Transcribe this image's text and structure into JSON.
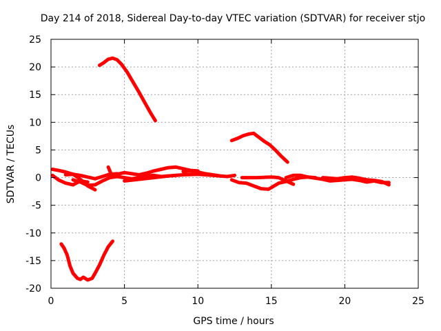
{
  "chart_data": {
    "type": "line",
    "title": "Day 214 of 2018, Sidereal Day-to-day VTEC variation (SDTVAR) for receiver stjo",
    "xlabel": "GPS time / hours",
    "ylabel": "SDTVAR / TECUs",
    "xlim": [
      0,
      25
    ],
    "ylim": [
      -20,
      25
    ],
    "xticks": [
      0,
      5,
      10,
      15,
      20,
      25
    ],
    "yticks": [
      -20,
      -15,
      -10,
      -5,
      0,
      5,
      10,
      15,
      20,
      25
    ],
    "xtick_labels": [
      "0",
      "5",
      "10",
      "15",
      "20",
      "25"
    ],
    "ytick_labels": [
      "-20",
      "-15",
      "-10",
      "-5",
      "0",
      "5",
      "10",
      "15",
      "20",
      "25"
    ],
    "grid": true,
    "legend": "none",
    "color": "#ff0000",
    "series": [
      {
        "name": "arc-positive-large",
        "x": [
          3.3,
          3.6,
          3.9,
          4.2,
          4.5,
          4.8,
          5.2,
          5.6,
          6.0,
          6.4,
          6.8,
          7.1
        ],
        "y": [
          20.3,
          20.8,
          21.4,
          21.6,
          21.3,
          20.5,
          19.0,
          17.2,
          15.4,
          13.5,
          11.6,
          10.3
        ]
      },
      {
        "name": "arc-negative-large",
        "x": [
          0.7,
          0.9,
          1.1,
          1.3,
          1.5,
          1.8,
          2.0,
          2.2,
          2.5,
          2.8,
          3.0,
          3.3,
          3.6,
          3.9,
          4.2
        ],
        "y": [
          -12.0,
          -12.8,
          -14.0,
          -16.0,
          -17.3,
          -18.2,
          -18.4,
          -18.0,
          -18.5,
          -18.2,
          -17.3,
          -15.8,
          -14.0,
          -12.5,
          -11.5
        ]
      },
      {
        "name": "arc-positive-evening",
        "x": [
          12.3,
          12.7,
          13.1,
          13.5,
          13.8,
          14.1,
          14.5,
          14.9,
          15.3,
          15.7,
          16.1
        ],
        "y": [
          6.7,
          7.1,
          7.6,
          7.9,
          8.0,
          7.4,
          6.6,
          5.9,
          4.9,
          3.8,
          2.8
        ]
      },
      {
        "name": "near-zero-a",
        "x": [
          0.1,
          0.5,
          1.0,
          1.5,
          2.0,
          2.5,
          3.0,
          3.5,
          4.0,
          4.5
        ],
        "y": [
          1.5,
          1.3,
          1.0,
          0.6,
          0.4,
          0.1,
          -0.2,
          0.2,
          0.6,
          0.7
        ]
      },
      {
        "name": "near-zero-b",
        "x": [
          0.1,
          0.5,
          1.0,
          1.5,
          2.0,
          2.5
        ],
        "y": [
          0.4,
          -0.4,
          -1.0,
          -1.3,
          -0.6,
          -0.8
        ]
      },
      {
        "name": "near-zero-c",
        "x": [
          1.5,
          2.0,
          2.5,
          3.0,
          3.5,
          4.0,
          4.5,
          5.0,
          5.5,
          6.0,
          6.5,
          7.0,
          7.5,
          8.0
        ],
        "y": [
          -0.4,
          -0.8,
          -1.4,
          -1.3,
          -0.6,
          0.0,
          0.2,
          0.0,
          -0.2,
          0.0,
          0.3,
          0.4,
          0.2,
          0.3
        ]
      },
      {
        "name": "near-zero-d",
        "x": [
          1.0,
          1.5,
          2.0,
          2.5,
          3.0
        ],
        "y": [
          0.5,
          0.6,
          -0.3,
          -1.5,
          -2.2
        ]
      },
      {
        "name": "near-zero-e",
        "x": [
          3.9,
          4.1,
          4.5,
          5.0,
          5.5,
          6.0,
          6.5,
          7.0,
          7.5,
          8.0,
          8.5,
          9.0,
          9.5,
          10.0
        ],
        "y": [
          1.9,
          0.6,
          0.6,
          0.9,
          0.7,
          0.5,
          0.8,
          1.2,
          1.5,
          1.8,
          1.9,
          1.6,
          1.3,
          1.2
        ]
      },
      {
        "name": "near-zero-f",
        "x": [
          5.0,
          6.0,
          7.0,
          8.0,
          9.0,
          10.0,
          11.0,
          12.0,
          12.5
        ],
        "y": [
          -0.6,
          -0.3,
          0.0,
          0.3,
          0.5,
          0.6,
          0.4,
          0.2,
          0.4
        ]
      },
      {
        "name": "near-zero-g",
        "x": [
          9.0,
          9.5,
          10.0,
          10.5,
          11.0,
          11.5
        ],
        "y": [
          1.1,
          1.2,
          1.0,
          0.7,
          0.5,
          0.3
        ]
      },
      {
        "name": "near-zero-h",
        "x": [
          12.3,
          12.8,
          13.3,
          13.8,
          14.3,
          14.8,
          15.0,
          15.5,
          16.0,
          16.5,
          17.0,
          17.5,
          18.0
        ],
        "y": [
          -0.4,
          -0.9,
          -1.0,
          -1.5,
          -2.0,
          -2.1,
          -1.8,
          -1.0,
          -0.7,
          -0.3,
          0.0,
          0.1,
          0.0
        ]
      },
      {
        "name": "near-zero-i",
        "x": [
          13.0,
          14.0,
          15.0,
          15.5,
          16.0,
          16.5
        ],
        "y": [
          0.0,
          0.0,
          0.1,
          0.0,
          -0.6,
          -1.2
        ]
      },
      {
        "name": "near-zero-j",
        "x": [
          16.0,
          16.5,
          17.0,
          17.5,
          18.0,
          18.5,
          19.0,
          19.5,
          20.0,
          20.5,
          21.0,
          21.5,
          22.0,
          22.5,
          23.0
        ],
        "y": [
          0.0,
          0.4,
          0.4,
          0.1,
          -0.1,
          -0.3,
          -0.6,
          -0.5,
          -0.4,
          -0.3,
          -0.5,
          -0.8,
          -0.6,
          -0.9,
          -0.9
        ]
      },
      {
        "name": "near-zero-k",
        "x": [
          18.5,
          19.0,
          19.5,
          20.0,
          20.5,
          21.0,
          21.5,
          22.0,
          22.5,
          23.0
        ],
        "y": [
          0.0,
          -0.1,
          -0.2,
          0.0,
          0.1,
          -0.1,
          -0.4,
          -0.5,
          -0.7,
          -1.3
        ]
      }
    ]
  }
}
